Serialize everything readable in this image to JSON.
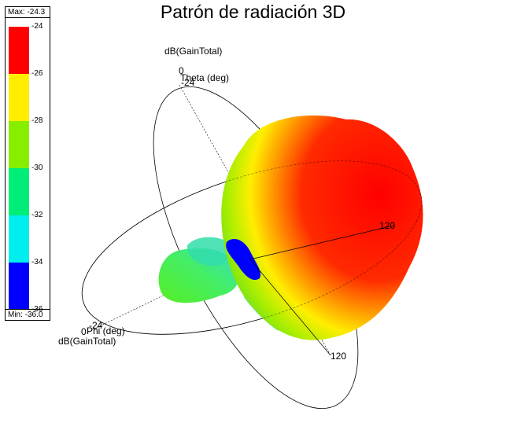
{
  "chart_data": {
    "type": "heatmap",
    "title": "Patrón de radiación 3D",
    "quantity": "dB(GainTotal)",
    "colorbar": {
      "max_label": "Max: -24.3",
      "min_label": "Min: -36.0",
      "max": -24.3,
      "min": -36.0,
      "ticks": [
        "-24",
        "-26",
        "-28",
        "-30",
        "-32",
        "-34",
        "-36"
      ],
      "band_colors": [
        "#ff0000",
        "#ffee00",
        "#88ee00",
        "#00ee77",
        "#00eeee",
        "#0000ff"
      ]
    },
    "axes": {
      "theta": {
        "label": "Theta (deg)",
        "qty_label": "dB(GainTotal)",
        "ticks": [
          "0",
          "-24",
          "120"
        ]
      },
      "phi": {
        "label": "Phi (deg)",
        "qty_label": "dB(GainTotal)",
        "ticks": [
          "0",
          "-24",
          "120"
        ]
      }
    },
    "surface": {
      "main_lobe_color": "#ff0000",
      "back_lobe_color": "#66ee33",
      "null_color": "#0000ff"
    }
  }
}
